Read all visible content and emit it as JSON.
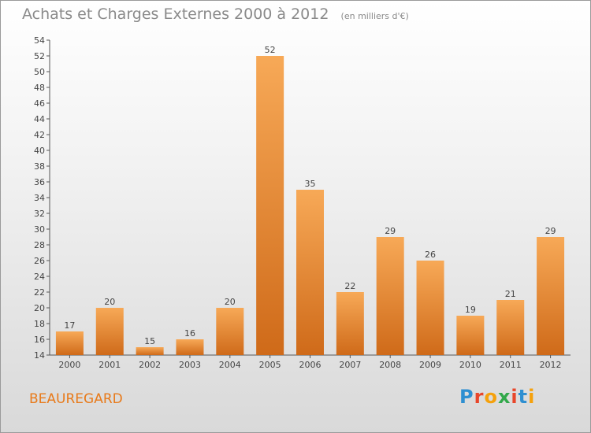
{
  "header": {
    "title": "Achats et Charges Externes 2000 à 2012",
    "subtitle": "(en milliers d'€)"
  },
  "footer": {
    "commune": "BEAUREGARD",
    "brand": "Proxiti"
  },
  "colors": {
    "bar_top": "#f7a957",
    "bar_bottom": "#cf6a19",
    "commune_text": "#e87a1a",
    "logo_letters": [
      "#2e8fd1",
      "#e8462a",
      "#f5a10c",
      "#32a84a",
      "#e8462a",
      "#2e8fd1",
      "#f5a10c"
    ]
  },
  "chart_data": {
    "type": "bar",
    "title": "Achats et Charges Externes 2000 à 2012",
    "categories": [
      "2000",
      "2001",
      "2002",
      "2003",
      "2004",
      "2005",
      "2006",
      "2007",
      "2008",
      "2009",
      "2010",
      "2011",
      "2012"
    ],
    "values": [
      17,
      20,
      15,
      16,
      20,
      52,
      35,
      22,
      29,
      26,
      19,
      21,
      29
    ],
    "ylim": [
      14,
      54
    ],
    "yticks": [
      14,
      16,
      18,
      20,
      22,
      24,
      26,
      28,
      30,
      32,
      34,
      36,
      38,
      40,
      42,
      44,
      46,
      48,
      50,
      52,
      54
    ],
    "grid": false
  }
}
